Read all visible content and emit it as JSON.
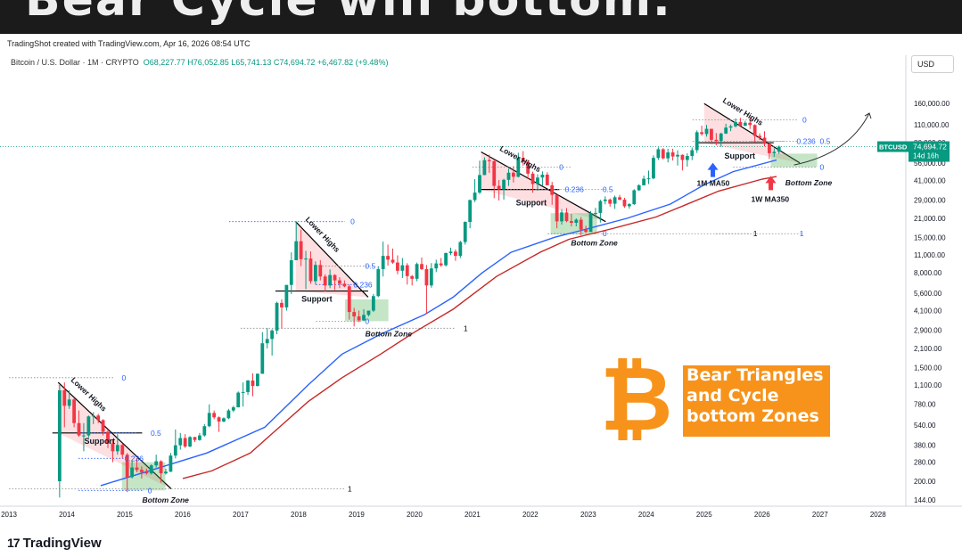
{
  "banner": {
    "text": "Bear Cycle will bottom."
  },
  "header": {
    "credit": "TradingShot created with TradingView.com, Apr 16, 2026 08:54 UTC",
    "symbol": "Bitcoin / U.S. Dollar · 1M · CRYPTO",
    "ohlc": "O68,227.77 H76,052.85 L65,741.13 C74,694.72 +6,467.82 (+9.48%)"
  },
  "currency_button": "USD",
  "price_tag": {
    "label": "BTCUSD",
    "price": "74,694.72",
    "countdown": "14d 16h"
  },
  "promo": {
    "lines": [
      "Bear Triangles",
      "and Cycle",
      "bottom Zones"
    ],
    "logo_glyph": "₿"
  },
  "footer": {
    "logo_glyph": "17",
    "brand": "TradingView"
  },
  "colors": {
    "up": "#089981",
    "down": "#f23645",
    "ma50": "#2962ff",
    "ma350": "#c62828",
    "accent": "#f7931a",
    "fib": "#2962ff"
  },
  "chart_data": {
    "type": "candlestick",
    "title": "",
    "xlabel": "",
    "ylabel": "",
    "y_scale": "log",
    "ylim": [
      130,
      160000
    ],
    "y_ticks": [
      "160,000.00",
      "110,000.00",
      "80,000.00",
      "56,000.00",
      "41,000.00",
      "29,000.00",
      "21,000.00",
      "15,000.00",
      "11,000.00",
      "8,000.00",
      "5,600.00",
      "4,100.00",
      "2,900.00",
      "2,100.00",
      "1,500.00",
      "1,100.00",
      "780.00",
      "540.00",
      "380.00",
      "280.00",
      "200.00",
      "144.00"
    ],
    "x_ticks": [
      "2013",
      "2014",
      "2015",
      "2016",
      "2017",
      "2018",
      "2019",
      "2020",
      "2021",
      "2022",
      "2023",
      "2024",
      "2025",
      "2026",
      "2027",
      "2028"
    ],
    "series": [
      {
        "name": "1M MA50",
        "points": [
          [
            "2014-08",
            185
          ],
          [
            "2015-06",
            240
          ],
          [
            "2016-06",
            330
          ],
          [
            "2017-06",
            520
          ],
          [
            "2018-03",
            1100
          ],
          [
            "2018-10",
            1900
          ],
          [
            "2019-06",
            2700
          ],
          [
            "2020-03",
            3800
          ],
          [
            "2020-09",
            5200
          ],
          [
            "2021-03",
            8000
          ],
          [
            "2021-09",
            11500
          ],
          [
            "2022-06",
            15000
          ],
          [
            "2023-01",
            17500
          ],
          [
            "2023-09",
            21000
          ],
          [
            "2024-06",
            27000
          ],
          [
            "2025-01",
            38000
          ],
          [
            "2025-07",
            48000
          ],
          [
            "2026-04",
            59000
          ]
        ]
      },
      {
        "name": "1W MA350",
        "points": [
          [
            "2016-01",
            210
          ],
          [
            "2016-07",
            240
          ],
          [
            "2017-03",
            330
          ],
          [
            "2017-09",
            520
          ],
          [
            "2018-03",
            820
          ],
          [
            "2018-10",
            1250
          ],
          [
            "2019-06",
            1900
          ],
          [
            "2020-01",
            2800
          ],
          [
            "2020-09",
            4200
          ],
          [
            "2021-06",
            7500
          ],
          [
            "2022-03",
            11500
          ],
          [
            "2022-09",
            14500
          ],
          [
            "2023-06",
            17500
          ],
          [
            "2024-03",
            21500
          ],
          [
            "2024-09",
            26500
          ],
          [
            "2025-04",
            34000
          ],
          [
            "2026-01",
            42000
          ],
          [
            "2026-04",
            44000
          ]
        ]
      }
    ],
    "candles_monthly": [
      [
        "2013-11",
        200,
        1100,
        150,
        1000
      ],
      [
        "2013-12",
        1000,
        1150,
        520,
        760
      ],
      [
        "2014-01",
        760,
        1000,
        720,
        850
      ],
      [
        "2014-02",
        850,
        870,
        520,
        560
      ],
      [
        "2014-03",
        560,
        700,
        440,
        450
      ],
      [
        "2014-04",
        450,
        560,
        340,
        450
      ],
      [
        "2014-05",
        450,
        640,
        430,
        630
      ],
      [
        "2014-06",
        630,
        680,
        550,
        640
      ],
      [
        "2014-07",
        640,
        660,
        560,
        590
      ],
      [
        "2014-08",
        590,
        600,
        450,
        480
      ],
      [
        "2014-09",
        480,
        500,
        360,
        390
      ],
      [
        "2014-10",
        390,
        420,
        280,
        340
      ],
      [
        "2014-11",
        340,
        460,
        320,
        380
      ],
      [
        "2014-12",
        380,
        390,
        300,
        320
      ],
      [
        "2015-01",
        320,
        330,
        165,
        215
      ],
      [
        "2015-02",
        215,
        290,
        210,
        255
      ],
      [
        "2015-03",
        255,
        300,
        235,
        245
      ],
      [
        "2015-04",
        245,
        260,
        210,
        235
      ],
      [
        "2015-05",
        235,
        250,
        225,
        230
      ],
      [
        "2015-06",
        230,
        270,
        225,
        265
      ],
      [
        "2015-07",
        265,
        320,
        255,
        285
      ],
      [
        "2015-08",
        285,
        290,
        195,
        230
      ],
      [
        "2015-09",
        230,
        250,
        225,
        237
      ],
      [
        "2015-10",
        237,
        330,
        235,
        315
      ],
      [
        "2015-11",
        315,
        500,
        300,
        378
      ],
      [
        "2015-12",
        378,
        470,
        350,
        430
      ],
      [
        "2016-01",
        430,
        460,
        360,
        370
      ],
      [
        "2016-02",
        370,
        445,
        365,
        437
      ],
      [
        "2016-03",
        437,
        440,
        400,
        415
      ],
      [
        "2016-04",
        415,
        470,
        410,
        450
      ],
      [
        "2016-05",
        450,
        550,
        440,
        530
      ],
      [
        "2016-06",
        530,
        780,
        520,
        670
      ],
      [
        "2016-07",
        670,
        700,
        600,
        620
      ],
      [
        "2016-08",
        620,
        630,
        480,
        575
      ],
      [
        "2016-09",
        575,
        620,
        570,
        610
      ],
      [
        "2016-10",
        610,
        720,
        600,
        700
      ],
      [
        "2016-11",
        700,
        760,
        680,
        740
      ],
      [
        "2016-12",
        740,
        980,
        740,
        960
      ],
      [
        "2017-01",
        960,
        1150,
        750,
        970
      ],
      [
        "2017-02",
        970,
        1200,
        920,
        1190
      ],
      [
        "2017-03",
        1190,
        1350,
        900,
        1080
      ],
      [
        "2017-04",
        1080,
        1350,
        1070,
        1340
      ],
      [
        "2017-05",
        1340,
        2800,
        1340,
        2300
      ],
      [
        "2017-06",
        2300,
        3000,
        2100,
        2480
      ],
      [
        "2017-07",
        2480,
        2950,
        1850,
        2880
      ],
      [
        "2017-08",
        2880,
        4800,
        2700,
        4700
      ],
      [
        "2017-09",
        4700,
        5000,
        2980,
        4340
      ],
      [
        "2017-10",
        4340,
        6450,
        4100,
        6460
      ],
      [
        "2017-11",
        6460,
        11500,
        5500,
        10000
      ],
      [
        "2017-12",
        10000,
        19800,
        10000,
        14000
      ],
      [
        "2018-01",
        14000,
        17200,
        9000,
        10200
      ],
      [
        "2018-02",
        10200,
        11800,
        6000,
        10300
      ],
      [
        "2018-03",
        10300,
        11700,
        6600,
        6900
      ],
      [
        "2018-04",
        6900,
        9800,
        6500,
        9200
      ],
      [
        "2018-05",
        9200,
        10000,
        7000,
        7500
      ],
      [
        "2018-06",
        7500,
        7800,
        5750,
        6400
      ],
      [
        "2018-07",
        6400,
        8500,
        6100,
        7700
      ],
      [
        "2018-08",
        7700,
        7800,
        5900,
        7000
      ],
      [
        "2018-09",
        7000,
        7400,
        6100,
        6600
      ],
      [
        "2018-10",
        6600,
        7000,
        6200,
        6300
      ],
      [
        "2018-11",
        6300,
        6500,
        3500,
        4000
      ],
      [
        "2018-12",
        4000,
        4300,
        3100,
        3700
      ],
      [
        "2019-01",
        3700,
        4100,
        3350,
        3450
      ],
      [
        "2019-02",
        3450,
        4200,
        3400,
        3800
      ],
      [
        "2019-03",
        3800,
        4100,
        3700,
        4100
      ],
      [
        "2019-04",
        4100,
        5500,
        4000,
        5300
      ],
      [
        "2019-05",
        5300,
        9000,
        5200,
        8550
      ],
      [
        "2019-06",
        8550,
        13900,
        7500,
        10800
      ],
      [
        "2019-07",
        10800,
        13200,
        9100,
        10100
      ],
      [
        "2019-08",
        10100,
        12300,
        9400,
        9600
      ],
      [
        "2019-09",
        9600,
        10900,
        7800,
        8300
      ],
      [
        "2019-10",
        8300,
        10400,
        7300,
        9150
      ],
      [
        "2019-11",
        9150,
        9500,
        6500,
        7550
      ],
      [
        "2019-12",
        7550,
        7700,
        6400,
        7200
      ],
      [
        "2020-01",
        7200,
        9600,
        6900,
        9350
      ],
      [
        "2020-02",
        9350,
        10500,
        8400,
        8550
      ],
      [
        "2020-03",
        8550,
        9200,
        3850,
        6400
      ],
      [
        "2020-04",
        6400,
        9500,
        6150,
        8650
      ],
      [
        "2020-05",
        8650,
        10100,
        8100,
        9450
      ],
      [
        "2020-06",
        9450,
        10400,
        8900,
        9150
      ],
      [
        "2020-07",
        9150,
        11450,
        8950,
        11350
      ],
      [
        "2020-08",
        11350,
        12500,
        10950,
        11650
      ],
      [
        "2020-09",
        11650,
        12100,
        9900,
        10800
      ],
      [
        "2020-10",
        10800,
        14100,
        10400,
        13800
      ],
      [
        "2020-11",
        13800,
        19900,
        13200,
        19700
      ],
      [
        "2020-12",
        19700,
        29300,
        17600,
        29000
      ],
      [
        "2021-01",
        29000,
        42000,
        28000,
        33100
      ],
      [
        "2021-02",
        33100,
        58300,
        32300,
        45200
      ],
      [
        "2021-03",
        45200,
        61800,
        45000,
        58800
      ],
      [
        "2021-04",
        58800,
        64900,
        47000,
        57700
      ],
      [
        "2021-05",
        57700,
        59500,
        30000,
        37300
      ],
      [
        "2021-06",
        37300,
        41300,
        28800,
        35000
      ],
      [
        "2021-07",
        35000,
        42300,
        29300,
        41500
      ],
      [
        "2021-08",
        41500,
        50500,
        37300,
        47100
      ],
      [
        "2021-09",
        47100,
        52900,
        39600,
        43800
      ],
      [
        "2021-10",
        43800,
        67000,
        43300,
        61300
      ],
      [
        "2021-11",
        61300,
        69000,
        53300,
        57000
      ],
      [
        "2021-12",
        57000,
        59000,
        42000,
        46300
      ],
      [
        "2022-01",
        46300,
        48000,
        33000,
        38500
      ],
      [
        "2022-02",
        38500,
        45800,
        34300,
        43200
      ],
      [
        "2022-03",
        43200,
        48200,
        37200,
        45500
      ],
      [
        "2022-04",
        45500,
        47400,
        37700,
        37700
      ],
      [
        "2022-05",
        37700,
        40000,
        26700,
        31800
      ],
      [
        "2022-06",
        31800,
        31900,
        17600,
        19900
      ],
      [
        "2022-07",
        19900,
        24700,
        18800,
        23300
      ],
      [
        "2022-08",
        23300,
        25200,
        19600,
        20000
      ],
      [
        "2022-09",
        20000,
        22800,
        18200,
        19400
      ],
      [
        "2022-10",
        19400,
        21000,
        18200,
        20500
      ],
      [
        "2022-11",
        20500,
        21500,
        15500,
        17200
      ],
      [
        "2022-12",
        17200,
        18400,
        16300,
        16500
      ],
      [
        "2023-01",
        16500,
        23900,
        16500,
        23100
      ],
      [
        "2023-02",
        23100,
        25300,
        21400,
        23100
      ],
      [
        "2023-03",
        23100,
        29200,
        19500,
        28500
      ],
      [
        "2023-04",
        28500,
        31000,
        26900,
        29300
      ],
      [
        "2023-05",
        29300,
        29900,
        25800,
        27200
      ],
      [
        "2023-06",
        27200,
        31400,
        24800,
        30500
      ],
      [
        "2023-07",
        30500,
        31800,
        28900,
        29200
      ],
      [
        "2023-08",
        29200,
        30200,
        25300,
        26000
      ],
      [
        "2023-09",
        26000,
        27500,
        24900,
        27000
      ],
      [
        "2023-10",
        27000,
        35200,
        26600,
        34500
      ],
      [
        "2023-11",
        34500,
        38400,
        34100,
        37700
      ],
      [
        "2023-12",
        37700,
        44700,
        37600,
        42300
      ],
      [
        "2024-01",
        42300,
        48900,
        38500,
        42600
      ],
      [
        "2024-02",
        42600,
        64000,
        41900,
        61200
      ],
      [
        "2024-03",
        61200,
        73800,
        59000,
        71300
      ],
      [
        "2024-04",
        71300,
        72800,
        59600,
        60700
      ],
      [
        "2024-05",
        60700,
        71900,
        56500,
        67500
      ],
      [
        "2024-06",
        67500,
        72000,
        58400,
        62700
      ],
      [
        "2024-07",
        62700,
        70000,
        53500,
        64600
      ],
      [
        "2024-08",
        64600,
        65100,
        49000,
        59000
      ],
      [
        "2024-09",
        59000,
        66500,
        52500,
        63300
      ],
      [
        "2024-10",
        63300,
        73600,
        58900,
        70200
      ],
      [
        "2024-11",
        70200,
        99600,
        66800,
        96400
      ],
      [
        "2024-12",
        96400,
        108300,
        90500,
        93400
      ],
      [
        "2025-01",
        93400,
        109600,
        89200,
        102400
      ],
      [
        "2025-02",
        102400,
        102500,
        78200,
        84300
      ],
      [
        "2025-03",
        84300,
        95000,
        76600,
        82500
      ],
      [
        "2025-04",
        82500,
        95700,
        74600,
        94200
      ],
      [
        "2025-05",
        94200,
        111900,
        93300,
        104600
      ],
      [
        "2025-06",
        104600,
        110500,
        98200,
        107100
      ],
      [
        "2025-07",
        107100,
        123200,
        105100,
        115700
      ],
      [
        "2025-08",
        115700,
        124400,
        107300,
        108200
      ],
      [
        "2025-09",
        108200,
        117900,
        107300,
        114000
      ],
      [
        "2025-10",
        114000,
        126200,
        102000,
        109500
      ],
      [
        "2025-11",
        109500,
        111000,
        80500,
        90400
      ],
      [
        "2025-12",
        90400,
        94500,
        84000,
        87500
      ],
      [
        "2026-01",
        87500,
        98000,
        75000,
        78500
      ],
      [
        "2026-02",
        78500,
        80000,
        60000,
        66500
      ],
      [
        "2026-03",
        66500,
        72500,
        62500,
        68200
      ],
      [
        "2026-04",
        68227.77,
        76052.85,
        65741.13,
        74694.72
      ]
    ],
    "annotations": {
      "lower_highs": "Lower Highs",
      "support": "Support",
      "bottom_zone": "Bottom Zone",
      "fib_levels": [
        "0",
        "0.236",
        "0.5",
        "1"
      ],
      "ma50_label": "1M MA50",
      "ma350_label": "1W MA350"
    },
    "grid": false,
    "legend": "none"
  }
}
